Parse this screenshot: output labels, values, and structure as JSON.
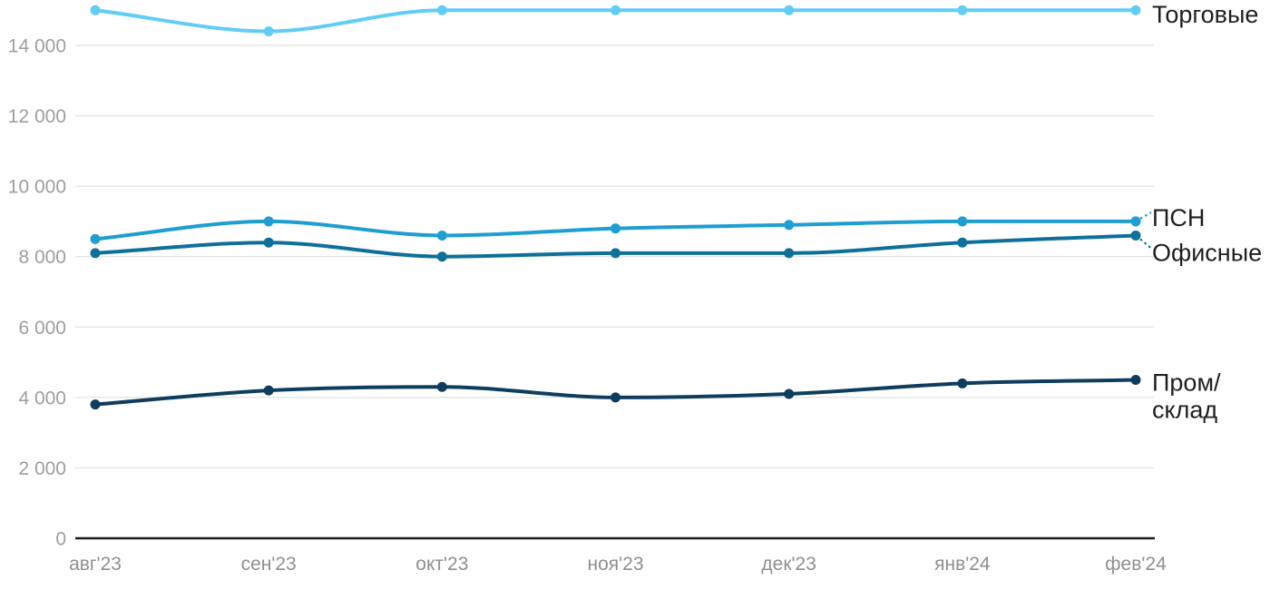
{
  "chart_data": {
    "type": "line",
    "title": "",
    "xlabel": "",
    "ylabel": "",
    "categories": [
      "авг'23",
      "сен'23",
      "окт'23",
      "ноя'23",
      "дек'23",
      "янв'24",
      "фев'24"
    ],
    "series": [
      {
        "name": "Торговые",
        "color": "#61CDF4",
        "label_lines": [
          "Торговые"
        ],
        "values": [
          15000,
          14400,
          15000,
          15000,
          15000,
          15000,
          15000
        ]
      },
      {
        "name": "ПСН",
        "color": "#1E9ED1",
        "label_lines": [
          "ПСН"
        ],
        "values": [
          8500,
          9000,
          8600,
          8800,
          8900,
          9000,
          9000
        ]
      },
      {
        "name": "Офисные",
        "color": "#0E7099",
        "label_lines": [
          "Офисные"
        ],
        "values": [
          8100,
          8400,
          8000,
          8100,
          8100,
          8400,
          8600
        ]
      },
      {
        "name": "Пром/склад",
        "color": "#0F3D5E",
        "label_lines": [
          "Пром/",
          "склад"
        ],
        "values": [
          3800,
          4200,
          4300,
          4000,
          4100,
          4400,
          4500
        ]
      }
    ],
    "y_axis": {
      "ticks": [
        {
          "value": 0,
          "label": "0"
        },
        {
          "value": 2000,
          "label": "2 000"
        },
        {
          "value": 4000,
          "label": "4 000"
        },
        {
          "value": 6000,
          "label": "6 000"
        },
        {
          "value": 8000,
          "label": "8 000"
        },
        {
          "value": 10000,
          "label": "10 000"
        },
        {
          "value": 12000,
          "label": "12 000"
        },
        {
          "value": 14000,
          "label": "14 000"
        }
      ],
      "ylim": [
        0,
        15200
      ]
    },
    "grid": "horizontal-only",
    "legend_position": "right-end-labels",
    "colors": {
      "grid_line": "#E5E5E5",
      "axis_line": "#1C1C1C",
      "y_tick_text": "#9E9E9E",
      "x_tick_text": "#8F8F8F",
      "series_label_text": "#1F1F1F",
      "background": "#FFFFFF"
    }
  }
}
